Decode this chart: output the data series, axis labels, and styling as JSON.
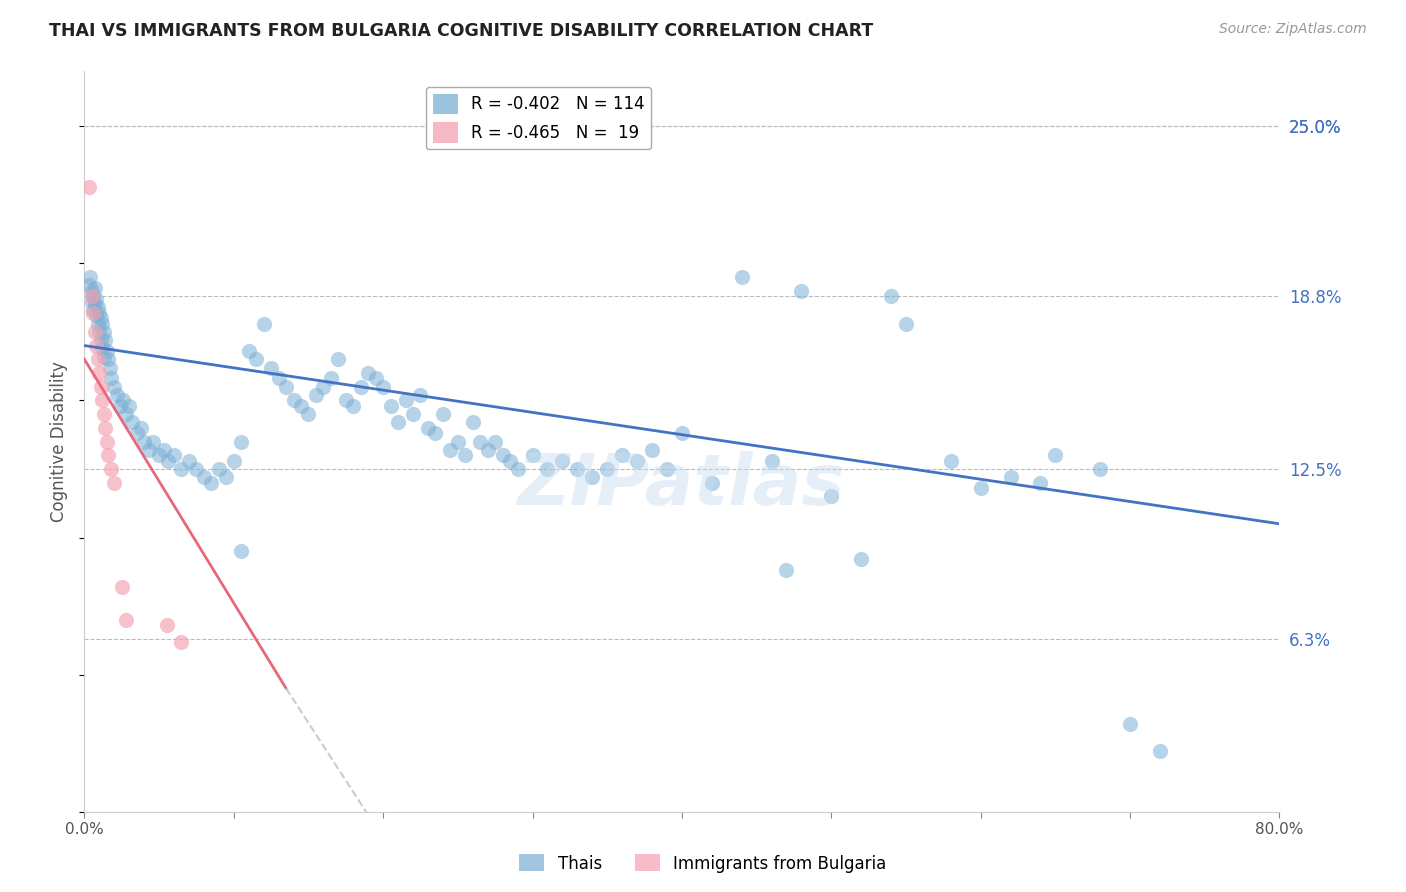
{
  "title": "THAI VS IMMIGRANTS FROM BULGARIA COGNITIVE DISABILITY CORRELATION CHART",
  "source": "Source: ZipAtlas.com",
  "ylabel": "Cognitive Disability",
  "right_yticks": [
    6.3,
    12.5,
    18.8,
    25.0
  ],
  "right_yticklabels": [
    "6.3%",
    "12.5%",
    "18.8%",
    "25.0%"
  ],
  "legend_blue_r": "-0.402",
  "legend_blue_n": "114",
  "legend_pink_r": "-0.465",
  "legend_pink_n": "19",
  "xlim": [
    0.0,
    80.0
  ],
  "ylim": [
    0.0,
    27.0
  ],
  "ymax_display": 25.0,
  "blue_color": "#7BAFD4",
  "pink_color": "#F4A0B0",
  "blue_line_color": "#4472C4",
  "pink_line_color": "#E8687A",
  "pink_line_dashed_color": "#CCCCCC",
  "watermark": "ZIPatlas",
  "scatter_blue": [
    [
      0.3,
      19.2
    ],
    [
      0.4,
      19.5
    ],
    [
      0.5,
      19.0
    ],
    [
      0.5,
      18.6
    ],
    [
      0.6,
      18.8
    ],
    [
      0.6,
      18.3
    ],
    [
      0.7,
      19.1
    ],
    [
      0.7,
      18.5
    ],
    [
      0.8,
      18.7
    ],
    [
      0.8,
      18.1
    ],
    [
      0.9,
      18.4
    ],
    [
      0.9,
      17.8
    ],
    [
      1.0,
      18.2
    ],
    [
      1.0,
      17.5
    ],
    [
      1.1,
      18.0
    ],
    [
      1.1,
      17.2
    ],
    [
      1.2,
      17.8
    ],
    [
      1.2,
      16.9
    ],
    [
      1.3,
      17.5
    ],
    [
      1.3,
      16.6
    ],
    [
      1.4,
      17.2
    ],
    [
      1.5,
      16.8
    ],
    [
      1.6,
      16.5
    ],
    [
      1.7,
      16.2
    ],
    [
      1.8,
      15.8
    ],
    [
      2.0,
      15.5
    ],
    [
      2.2,
      15.2
    ],
    [
      2.4,
      14.8
    ],
    [
      2.6,
      15.0
    ],
    [
      2.8,
      14.5
    ],
    [
      3.0,
      14.8
    ],
    [
      3.2,
      14.2
    ],
    [
      3.5,
      13.8
    ],
    [
      3.8,
      14.0
    ],
    [
      4.0,
      13.5
    ],
    [
      4.3,
      13.2
    ],
    [
      4.6,
      13.5
    ],
    [
      5.0,
      13.0
    ],
    [
      5.3,
      13.2
    ],
    [
      5.6,
      12.8
    ],
    [
      6.0,
      13.0
    ],
    [
      6.5,
      12.5
    ],
    [
      7.0,
      12.8
    ],
    [
      7.5,
      12.5
    ],
    [
      8.0,
      12.2
    ],
    [
      8.5,
      12.0
    ],
    [
      9.0,
      12.5
    ],
    [
      9.5,
      12.2
    ],
    [
      10.0,
      12.8
    ],
    [
      10.5,
      13.5
    ],
    [
      11.0,
      16.8
    ],
    [
      11.5,
      16.5
    ],
    [
      12.0,
      17.8
    ],
    [
      12.5,
      16.2
    ],
    [
      13.0,
      15.8
    ],
    [
      13.5,
      15.5
    ],
    [
      14.0,
      15.0
    ],
    [
      14.5,
      14.8
    ],
    [
      15.0,
      14.5
    ],
    [
      15.5,
      15.2
    ],
    [
      16.0,
      15.5
    ],
    [
      16.5,
      15.8
    ],
    [
      17.0,
      16.5
    ],
    [
      17.5,
      15.0
    ],
    [
      18.0,
      14.8
    ],
    [
      18.5,
      15.5
    ],
    [
      19.0,
      16.0
    ],
    [
      19.5,
      15.8
    ],
    [
      20.0,
      15.5
    ],
    [
      20.5,
      14.8
    ],
    [
      21.0,
      14.2
    ],
    [
      21.5,
      15.0
    ],
    [
      22.0,
      14.5
    ],
    [
      22.5,
      15.2
    ],
    [
      23.0,
      14.0
    ],
    [
      23.5,
      13.8
    ],
    [
      24.0,
      14.5
    ],
    [
      24.5,
      13.2
    ],
    [
      25.0,
      13.5
    ],
    [
      25.5,
      13.0
    ],
    [
      26.0,
      14.2
    ],
    [
      26.5,
      13.5
    ],
    [
      27.0,
      13.2
    ],
    [
      27.5,
      13.5
    ],
    [
      28.0,
      13.0
    ],
    [
      28.5,
      12.8
    ],
    [
      29.0,
      12.5
    ],
    [
      30.0,
      13.0
    ],
    [
      31.0,
      12.5
    ],
    [
      32.0,
      12.8
    ],
    [
      33.0,
      12.5
    ],
    [
      34.0,
      12.2
    ],
    [
      35.0,
      12.5
    ],
    [
      36.0,
      13.0
    ],
    [
      37.0,
      12.8
    ],
    [
      38.0,
      13.2
    ],
    [
      39.0,
      12.5
    ],
    [
      40.0,
      13.8
    ],
    [
      42.0,
      12.0
    ],
    [
      44.0,
      19.5
    ],
    [
      46.0,
      12.8
    ],
    [
      48.0,
      19.0
    ],
    [
      50.0,
      11.5
    ],
    [
      52.0,
      9.2
    ],
    [
      54.0,
      18.8
    ],
    [
      55.0,
      17.8
    ],
    [
      58.0,
      12.8
    ],
    [
      60.0,
      11.8
    ],
    [
      62.0,
      12.2
    ],
    [
      64.0,
      12.0
    ],
    [
      65.0,
      13.0
    ],
    [
      68.0,
      12.5
    ],
    [
      70.0,
      3.2
    ],
    [
      72.0,
      2.2
    ],
    [
      10.5,
      9.5
    ],
    [
      47.0,
      8.8
    ]
  ],
  "scatter_pink": [
    [
      0.3,
      22.8
    ],
    [
      0.5,
      18.8
    ],
    [
      0.6,
      18.2
    ],
    [
      0.7,
      17.5
    ],
    [
      0.8,
      17.0
    ],
    [
      0.9,
      16.5
    ],
    [
      1.0,
      16.0
    ],
    [
      1.1,
      15.5
    ],
    [
      1.2,
      15.0
    ],
    [
      1.3,
      14.5
    ],
    [
      1.4,
      14.0
    ],
    [
      1.5,
      13.5
    ],
    [
      1.6,
      13.0
    ],
    [
      1.8,
      12.5
    ],
    [
      2.0,
      12.0
    ],
    [
      2.5,
      8.2
    ],
    [
      2.8,
      7.0
    ],
    [
      5.5,
      6.8
    ],
    [
      6.5,
      6.2
    ]
  ],
  "blue_trendline": [
    [
      0.0,
      17.0
    ],
    [
      80.0,
      10.5
    ]
  ],
  "pink_trendline_solid": [
    [
      0.0,
      16.5
    ],
    [
      13.5,
      4.5
    ]
  ],
  "pink_trendline_dashed": [
    [
      13.5,
      4.5
    ],
    [
      26.0,
      -6.0
    ]
  ]
}
